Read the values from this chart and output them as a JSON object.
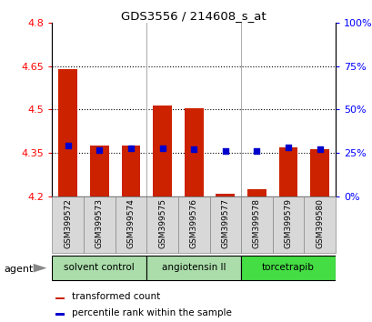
{
  "title": "GDS3556 / 214608_s_at",
  "samples": [
    "GSM399572",
    "GSM399573",
    "GSM399574",
    "GSM399575",
    "GSM399576",
    "GSM399577",
    "GSM399578",
    "GSM399579",
    "GSM399580"
  ],
  "bar_bottoms": [
    4.2,
    4.2,
    4.2,
    4.2,
    4.2,
    4.2,
    4.2,
    4.2,
    4.2
  ],
  "bar_tops": [
    4.638,
    4.375,
    4.375,
    4.515,
    4.505,
    4.21,
    4.225,
    4.37,
    4.363
  ],
  "percentile_values": [
    4.375,
    4.36,
    4.365,
    4.365,
    4.363,
    4.358,
    4.357,
    4.368,
    4.363
  ],
  "bar_color": "#cc2200",
  "pct_color": "#0000cc",
  "ylim": [
    4.2,
    4.8
  ],
  "yticks_left": [
    4.2,
    4.35,
    4.5,
    4.65,
    4.8
  ],
  "yticks_right_vals": [
    0,
    25,
    50,
    75,
    100
  ],
  "yticks_right_labels": [
    "0%",
    "25%",
    "50%",
    "75%",
    "100%"
  ],
  "group_configs": [
    {
      "start": 0,
      "end": 2,
      "label": "solvent control",
      "color": "#aaddaa"
    },
    {
      "start": 3,
      "end": 5,
      "label": "angiotensin II",
      "color": "#aaddaa"
    },
    {
      "start": 6,
      "end": 8,
      "label": "torcetrapib",
      "color": "#44dd44"
    }
  ],
  "agent_label": "agent",
  "legend_bar_label": "transformed count",
  "legend_pct_label": "percentile rank within the sample"
}
